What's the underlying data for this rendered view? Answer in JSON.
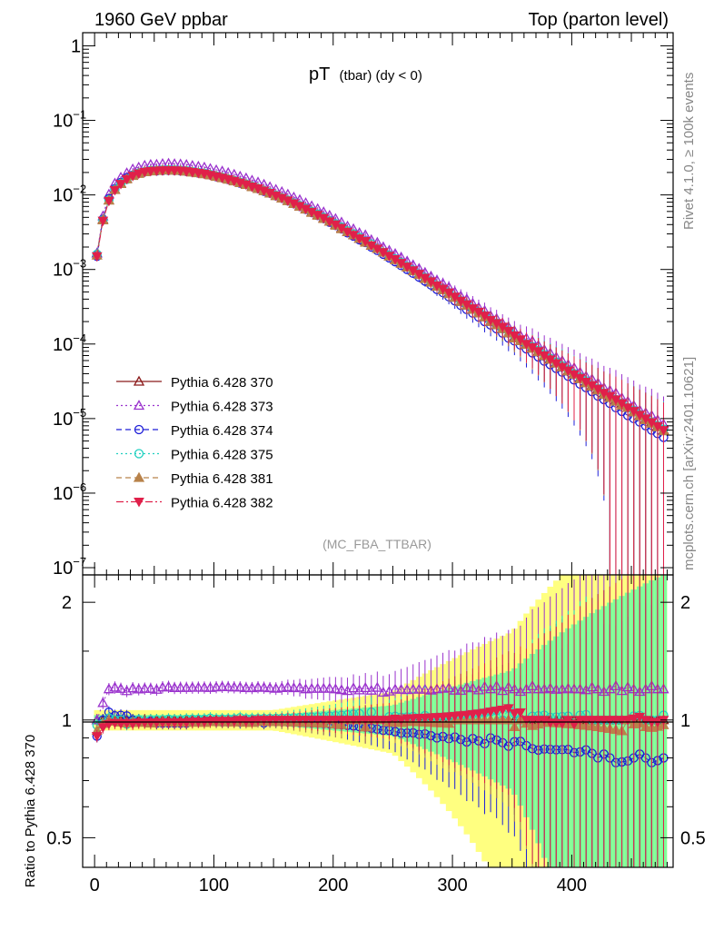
{
  "header": {
    "left": "1960 GeV ppbar",
    "right": "Top (parton level)"
  },
  "side_labels": {
    "rivet": "Rivet 4.1.0, ≥ 100k events",
    "mcplots": "mcplots.cern.ch [arXiv:2401.10621]"
  },
  "chart_data": [
    {
      "type": "line",
      "panel": "main",
      "title": "pT (tbar) (dy < 0)",
      "title_main": "pT",
      "title_sub": "(tbar) (dy < 0)",
      "analysis": "(MC_FBA_TTBAR)",
      "xlabel": "",
      "ylabel": "",
      "xlim": [
        -10,
        485
      ],
      "ylim": [
        8e-08,
        1.5
      ],
      "yscale": "log",
      "ytick_labels": [
        {
          "value": 1,
          "mantissa": "1",
          "exp": ""
        },
        {
          "value": 0.1,
          "mantissa": "10",
          "exp": "−1"
        },
        {
          "value": 0.01,
          "mantissa": "10",
          "exp": "−2"
        },
        {
          "value": 0.001,
          "mantissa": "10",
          "exp": "−3"
        },
        {
          "value": 0.0001,
          "mantissa": "10",
          "exp": "−4"
        },
        {
          "value": 1e-05,
          "mantissa": "10",
          "exp": "−5"
        },
        {
          "value": 1e-06,
          "mantissa": "10",
          "exp": "−6"
        },
        {
          "value": 1e-07,
          "mantissa": "10",
          "exp": "−7"
        }
      ],
      "x": [
        2,
        7,
        12,
        17,
        22,
        27,
        32,
        37,
        42,
        47,
        52,
        57,
        62,
        67,
        72,
        77,
        82,
        87,
        92,
        97,
        102,
        107,
        112,
        117,
        122,
        127,
        132,
        137,
        142,
        147,
        152,
        157,
        162,
        167,
        172,
        177,
        182,
        187,
        192,
        197,
        202,
        207,
        212,
        217,
        222,
        227,
        232,
        237,
        242,
        247,
        252,
        257,
        262,
        267,
        272,
        277,
        282,
        287,
        292,
        297,
        302,
        307,
        312,
        317,
        322,
        327,
        332,
        337,
        342,
        347,
        352,
        357,
        362,
        367,
        372,
        377,
        382,
        387,
        392,
        397,
        402,
        407,
        412,
        417,
        422,
        427,
        432,
        437,
        442,
        447,
        452,
        457,
        462,
        467,
        472,
        477
      ],
      "series": [
        {
          "name": "Pythia 6.428 370",
          "color": "#8b1a1a",
          "marker": "triangle-open",
          "dash": "",
          "values": [
            0.00165,
            0.0047,
            0.0085,
            0.0118,
            0.0143,
            0.0166,
            0.0184,
            0.0196,
            0.0206,
            0.0212,
            0.0214,
            0.0216,
            0.0217,
            0.0216,
            0.0214,
            0.021,
            0.0204,
            0.0199,
            0.0194,
            0.0186,
            0.0178,
            0.0171,
            0.0163,
            0.0155,
            0.0146,
            0.0139,
            0.013,
            0.0122,
            0.0114,
            0.0106,
            0.0098,
            0.0091,
            0.0084,
            0.0077,
            0.0071,
            0.0065,
            0.0059,
            0.0054,
            0.0049,
            0.0044,
            0.004,
            0.0036,
            0.0032,
            0.0029,
            0.0026,
            0.0024,
            0.0021,
            0.0019,
            0.0017,
            0.00152,
            0.00136,
            0.00122,
            0.00108,
            0.00096,
            0.00086,
            0.00076,
            0.00068,
            0.0006,
            0.00054,
            0.00048,
            0.00042,
            0.00037,
            0.00033,
            0.00029,
            0.00026,
            0.00023,
            0.0002,
            0.00018,
            0.00016,
            0.00014,
            0.000125,
            0.00011,
            0.0001,
            9e-05,
            8e-05,
            7e-05,
            6.3e-05,
            5.6e-05,
            5e-05,
            4.4e-05,
            4e-05,
            3.5e-05,
            3.1e-05,
            2.8e-05,
            2.5e-05,
            2.2e-05,
            2e-05,
            1.8e-05,
            1.6e-05,
            1.4e-05,
            1.25e-05,
            1.1e-05,
            1e-05,
            9e-06,
            8e-06,
            7e-06
          ]
        },
        {
          "name": "Pythia 6.428 373",
          "color": "#9a32cd",
          "marker": "triangle-open",
          "dash": "2,3",
          "values": [
            0.00165,
            0.0052,
            0.0102,
            0.0143,
            0.0172,
            0.0197,
            0.0222,
            0.0235,
            0.0248,
            0.0255,
            0.0256,
            0.0262,
            0.0264,
            0.0261,
            0.0259,
            0.0254,
            0.0247,
            0.0241,
            0.0235,
            0.0225,
            0.0216,
            0.0208,
            0.0198,
            0.0188,
            0.0177,
            0.0168,
            0.0157,
            0.0148,
            0.0138,
            0.0128,
            0.0118,
            0.011,
            0.0102,
            0.0093,
            0.0086,
            0.0078,
            0.0071,
            0.0065,
            0.0059,
            0.0053,
            0.0048,
            0.0043,
            0.0038,
            0.0035,
            0.0031,
            0.0029,
            0.0025,
            0.0023,
            0.002,
            0.0018,
            0.00163,
            0.00146,
            0.00129,
            0.00115,
            0.00103,
            0.00091,
            0.00081,
            0.00072,
            0.00065,
            0.00058,
            0.0005,
            0.00044,
            0.0004,
            0.00035,
            0.00031,
            0.00028,
            0.00024,
            0.00022,
            0.00019,
            0.00017,
            0.00015,
            0.00013,
            0.00012,
            0.00011,
            9.6e-05,
            8.4e-05,
            7.6e-05,
            6.7e-05,
            6e-05,
            5.3e-05,
            4.8e-05,
            4.2e-05,
            3.7e-05,
            3.4e-05,
            3e-05,
            2.6e-05,
            2.4e-05,
            2.2e-05,
            1.9e-05,
            1.7e-05,
            1.5e-05,
            1.3e-05,
            1.2e-05,
            1.1e-05,
            9.6e-06,
            8.4e-06
          ]
        },
        {
          "name": "Pythia 6.428 374",
          "color": "#1f1fd8",
          "marker": "circle-open",
          "dash": "6,4",
          "values": [
            0.0015,
            0.0047,
            0.0089,
            0.0121,
            0.0147,
            0.017,
            0.0184,
            0.0196,
            0.0204,
            0.021,
            0.021,
            0.0212,
            0.0213,
            0.0212,
            0.021,
            0.0206,
            0.0202,
            0.0197,
            0.0192,
            0.0185,
            0.0176,
            0.0169,
            0.0161,
            0.0154,
            0.0144,
            0.0138,
            0.0129,
            0.0121,
            0.0112,
            0.0105,
            0.0097,
            0.009,
            0.0083,
            0.0076,
            0.007,
            0.0064,
            0.0058,
            0.0053,
            0.0048,
            0.0043,
            0.0039,
            0.0035,
            0.0031,
            0.0028,
            0.0025,
            0.0023,
            0.002,
            0.0018,
            0.0016,
            0.00143,
            0.00127,
            0.00113,
            0.001,
            0.00089,
            0.00079,
            0.0007,
            0.00062,
            0.00054,
            0.00049,
            0.00043,
            0.00038,
            0.00033,
            0.00029,
            0.00026,
            0.00023,
            0.0002,
            0.00018,
            0.00016,
            0.00014,
            0.00012,
            0.00011,
            9.7e-05,
            8.6e-05,
            7.6e-05,
            6.7e-05,
            5.9e-05,
            5.3e-05,
            4.7e-05,
            4.2e-05,
            3.7e-05,
            3.3e-05,
            2.9e-05,
            2.6e-05,
            2.3e-05,
            2e-05,
            1.8e-05,
            1.6e-05,
            1.4e-05,
            1.25e-05,
            1.1e-05,
            1e-05,
            9e-06,
            8e-06,
            7e-06,
            6.3e-06,
            5.6e-06
          ]
        },
        {
          "name": "Pythia 6.428 375",
          "color": "#20d0c0",
          "marker": "circle-open",
          "dash": "2,3",
          "values": [
            0.0016,
            0.0046,
            0.0086,
            0.0118,
            0.0143,
            0.0162,
            0.0182,
            0.0196,
            0.0204,
            0.0212,
            0.0214,
            0.0216,
            0.0218,
            0.0216,
            0.0214,
            0.0211,
            0.0205,
            0.02,
            0.0195,
            0.0188,
            0.0179,
            0.0172,
            0.0164,
            0.0156,
            0.0148,
            0.014,
            0.0131,
            0.0123,
            0.0115,
            0.0107,
            0.0099,
            0.0092,
            0.0085,
            0.0078,
            0.0072,
            0.0066,
            0.006,
            0.0055,
            0.005,
            0.0045,
            0.0041,
            0.0037,
            0.0033,
            0.003,
            0.0027,
            0.0024,
            0.0022,
            0.0019,
            0.0017,
            0.00155,
            0.00139,
            0.00124,
            0.0011,
            0.00098,
            0.00087,
            0.00078,
            0.00069,
            0.00061,
            0.00055,
            0.00049,
            0.00043,
            0.00038,
            0.00034,
            0.0003,
            0.00027,
            0.00024,
            0.00021,
            0.00019,
            0.00016,
            0.00015,
            0.00013,
            0.00011,
            0.0001,
            9.2e-05,
            8.2e-05,
            7.2e-05,
            6.4e-05,
            5.7e-05,
            5.1e-05,
            4.5e-05,
            4e-05,
            3.6e-05,
            3.2e-05,
            2.8e-05,
            2.5e-05,
            2.2e-05,
            2e-05,
            1.8e-05,
            1.6e-05,
            1.4e-05,
            1.28e-05,
            1.13e-05,
            1e-05,
            9e-06,
            8e-06,
            7.2e-06
          ]
        },
        {
          "name": "Pythia 6.428 381",
          "color": "#b8824a",
          "marker": "triangle-filled",
          "dash": "6,4",
          "values": [
            0.00155,
            0.0046,
            0.0085,
            0.0117,
            0.0141,
            0.0163,
            0.0181,
            0.0193,
            0.0203,
            0.0208,
            0.0211,
            0.0214,
            0.0214,
            0.0213,
            0.0211,
            0.0207,
            0.0201,
            0.0197,
            0.0191,
            0.0184,
            0.0176,
            0.0169,
            0.0161,
            0.0153,
            0.0145,
            0.0137,
            0.0128,
            0.0121,
            0.0113,
            0.0105,
            0.0097,
            0.009,
            0.0083,
            0.0076,
            0.007,
            0.0064,
            0.0058,
            0.0053,
            0.0048,
            0.0044,
            0.0039,
            0.0035,
            0.0032,
            0.0029,
            0.0026,
            0.0023,
            0.0021,
            0.0019,
            0.0017,
            0.0015,
            0.00134,
            0.0012,
            0.00107,
            0.00095,
            0.00085,
            0.00075,
            0.00067,
            0.00059,
            0.00053,
            0.00047,
            0.00042,
            0.00037,
            0.00033,
            0.00029,
            0.00026,
            0.00023,
            0.0002,
            0.00018,
            0.00016,
            0.00014,
            0.00012,
            0.00011,
            9.8e-05,
            8.7e-05,
            7.8e-05,
            6.9e-05,
            6.2e-05,
            5.5e-05,
            4.9e-05,
            4.3e-05,
            3.9e-05,
            3.4e-05,
            3e-05,
            2.7e-05,
            2.4e-05,
            2.1e-05,
            1.9e-05,
            1.7e-05,
            1.5e-05,
            1.4e-05,
            1.22e-05,
            1.08e-05,
            9.6e-06,
            8.6e-06,
            7.7e-06,
            6.8e-06
          ]
        },
        {
          "name": "Pythia 6.428 382",
          "color": "#e0204a",
          "marker": "triangle-down-filled",
          "dash": "8,3,2,3",
          "values": [
            0.0015,
            0.0045,
            0.0083,
            0.0116,
            0.014,
            0.0163,
            0.018,
            0.0193,
            0.0203,
            0.0209,
            0.0211,
            0.0213,
            0.0214,
            0.0213,
            0.0211,
            0.0207,
            0.0202,
            0.0197,
            0.0192,
            0.0185,
            0.0177,
            0.017,
            0.0162,
            0.0154,
            0.0146,
            0.0138,
            0.0129,
            0.0122,
            0.0114,
            0.0106,
            0.0098,
            0.0091,
            0.0084,
            0.0077,
            0.0071,
            0.0065,
            0.0059,
            0.0054,
            0.0049,
            0.0044,
            0.004,
            0.0036,
            0.0032,
            0.0029,
            0.0026,
            0.0024,
            0.0021,
            0.0019,
            0.0017,
            0.00152,
            0.00137,
            0.00122,
            0.00109,
            0.00097,
            0.00087,
            0.00077,
            0.00069,
            0.00061,
            0.00055,
            0.00049,
            0.00043,
            0.00038,
            0.00034,
            0.0003,
            0.00027,
            0.00024,
            0.00021,
            0.00019,
            0.00017,
            0.00015,
            0.00013,
            0.000115,
            0.0001,
            9e-05,
            8e-05,
            7e-05,
            6.2e-05,
            5.5e-05,
            4.9e-05,
            4.4e-05,
            3.9e-05,
            3.5e-05,
            3.1e-05,
            2.8e-05,
            2.5e-05,
            2.2e-05,
            2e-05,
            1.8e-05,
            1.6e-05,
            1.4e-05,
            1.26e-05,
            1.12e-05,
            1e-05,
            8.9e-06,
            7.9e-06,
            7e-06
          ]
        }
      ]
    },
    {
      "type": "line",
      "panel": "ratio",
      "ylabel": "Ratio to Pythia 6.428 370",
      "xlabel": "",
      "xlim": [
        -10,
        485
      ],
      "ylim": [
        0.42,
        2.35
      ],
      "yscale": "log",
      "yticks": [
        0.5,
        1,
        2
      ],
      "ytick_labels": [
        "0.5",
        "1",
        "2"
      ],
      "xticks": [
        0,
        100,
        200,
        300,
        400
      ],
      "xtick_labels": [
        "0",
        "100",
        "200",
        "300",
        "400"
      ],
      "reference": 1,
      "band_colors": {
        "outer": "#ffff80",
        "inner": "#80ff9a"
      }
    }
  ]
}
